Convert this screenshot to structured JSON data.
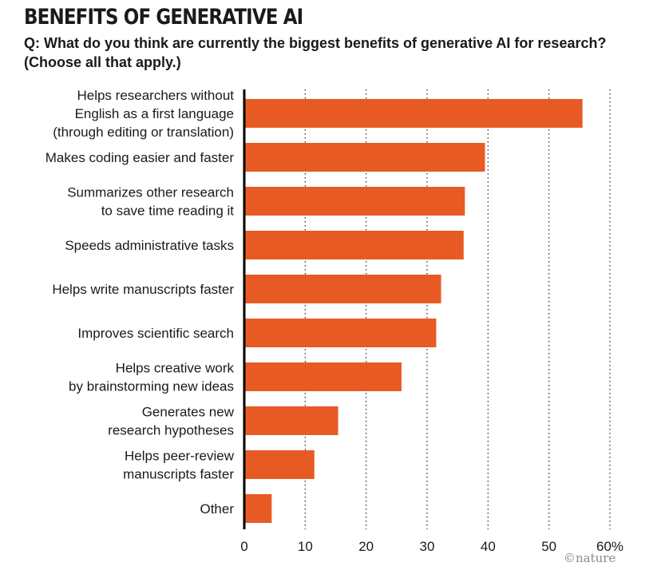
{
  "header": {
    "title": "BENEFITS OF GENERATIVE AI",
    "subtitle": "Q: What do you think are currently the biggest benefits of generative AI for research? (Choose all that apply.)"
  },
  "credit": "©nature",
  "colors": {
    "bar": "#e85a24",
    "axis": "#000000",
    "grid": "#333333"
  },
  "chart_data": {
    "type": "bar",
    "orientation": "horizontal",
    "categories": [
      [
        "Helps researchers without",
        "English as a first language",
        "(through editing or translation)"
      ],
      [
        "Makes coding easier and faster"
      ],
      [
        "Summarizes other research",
        "to save time reading it"
      ],
      [
        "Speeds administrative tasks"
      ],
      [
        "Helps write manuscripts faster"
      ],
      [
        "Improves scientific search"
      ],
      [
        "Helps creative work",
        "by brainstorming new ideas"
      ],
      [
        "Generates new",
        "research hypotheses"
      ],
      [
        "Helps peer-review",
        "manuscripts faster"
      ],
      [
        "Other"
      ]
    ],
    "values": [
      55.5,
      39.5,
      36.2,
      36.0,
      32.3,
      31.5,
      25.8,
      15.4,
      11.5,
      4.5
    ],
    "xlim": [
      0,
      60
    ],
    "ticks": [
      0,
      10,
      20,
      30,
      40,
      50,
      60
    ],
    "tick_labels": [
      "0",
      "10",
      "20",
      "30",
      "40",
      "50",
      "60%"
    ],
    "grid": "vertical-dotted"
  }
}
